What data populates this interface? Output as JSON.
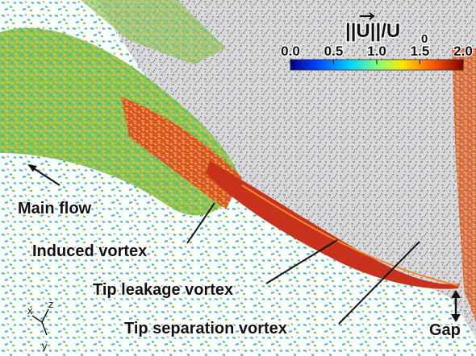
{
  "colorbar": {
    "label": "||U||/U",
    "label_subscript": "0",
    "ticks": [
      "0.0",
      "0.5",
      "1.0",
      "1.5",
      "2.0"
    ]
  },
  "annotations": {
    "main_flow": "Main flow",
    "induced_vortex": "Induced vortex",
    "tip_leakage_vortex": "Tip leakage vortex",
    "tip_separation_vortex": "Tip separation vortex",
    "gap": "Gap"
  },
  "axes": {
    "x": "x",
    "z": "z",
    "y": "y"
  }
}
